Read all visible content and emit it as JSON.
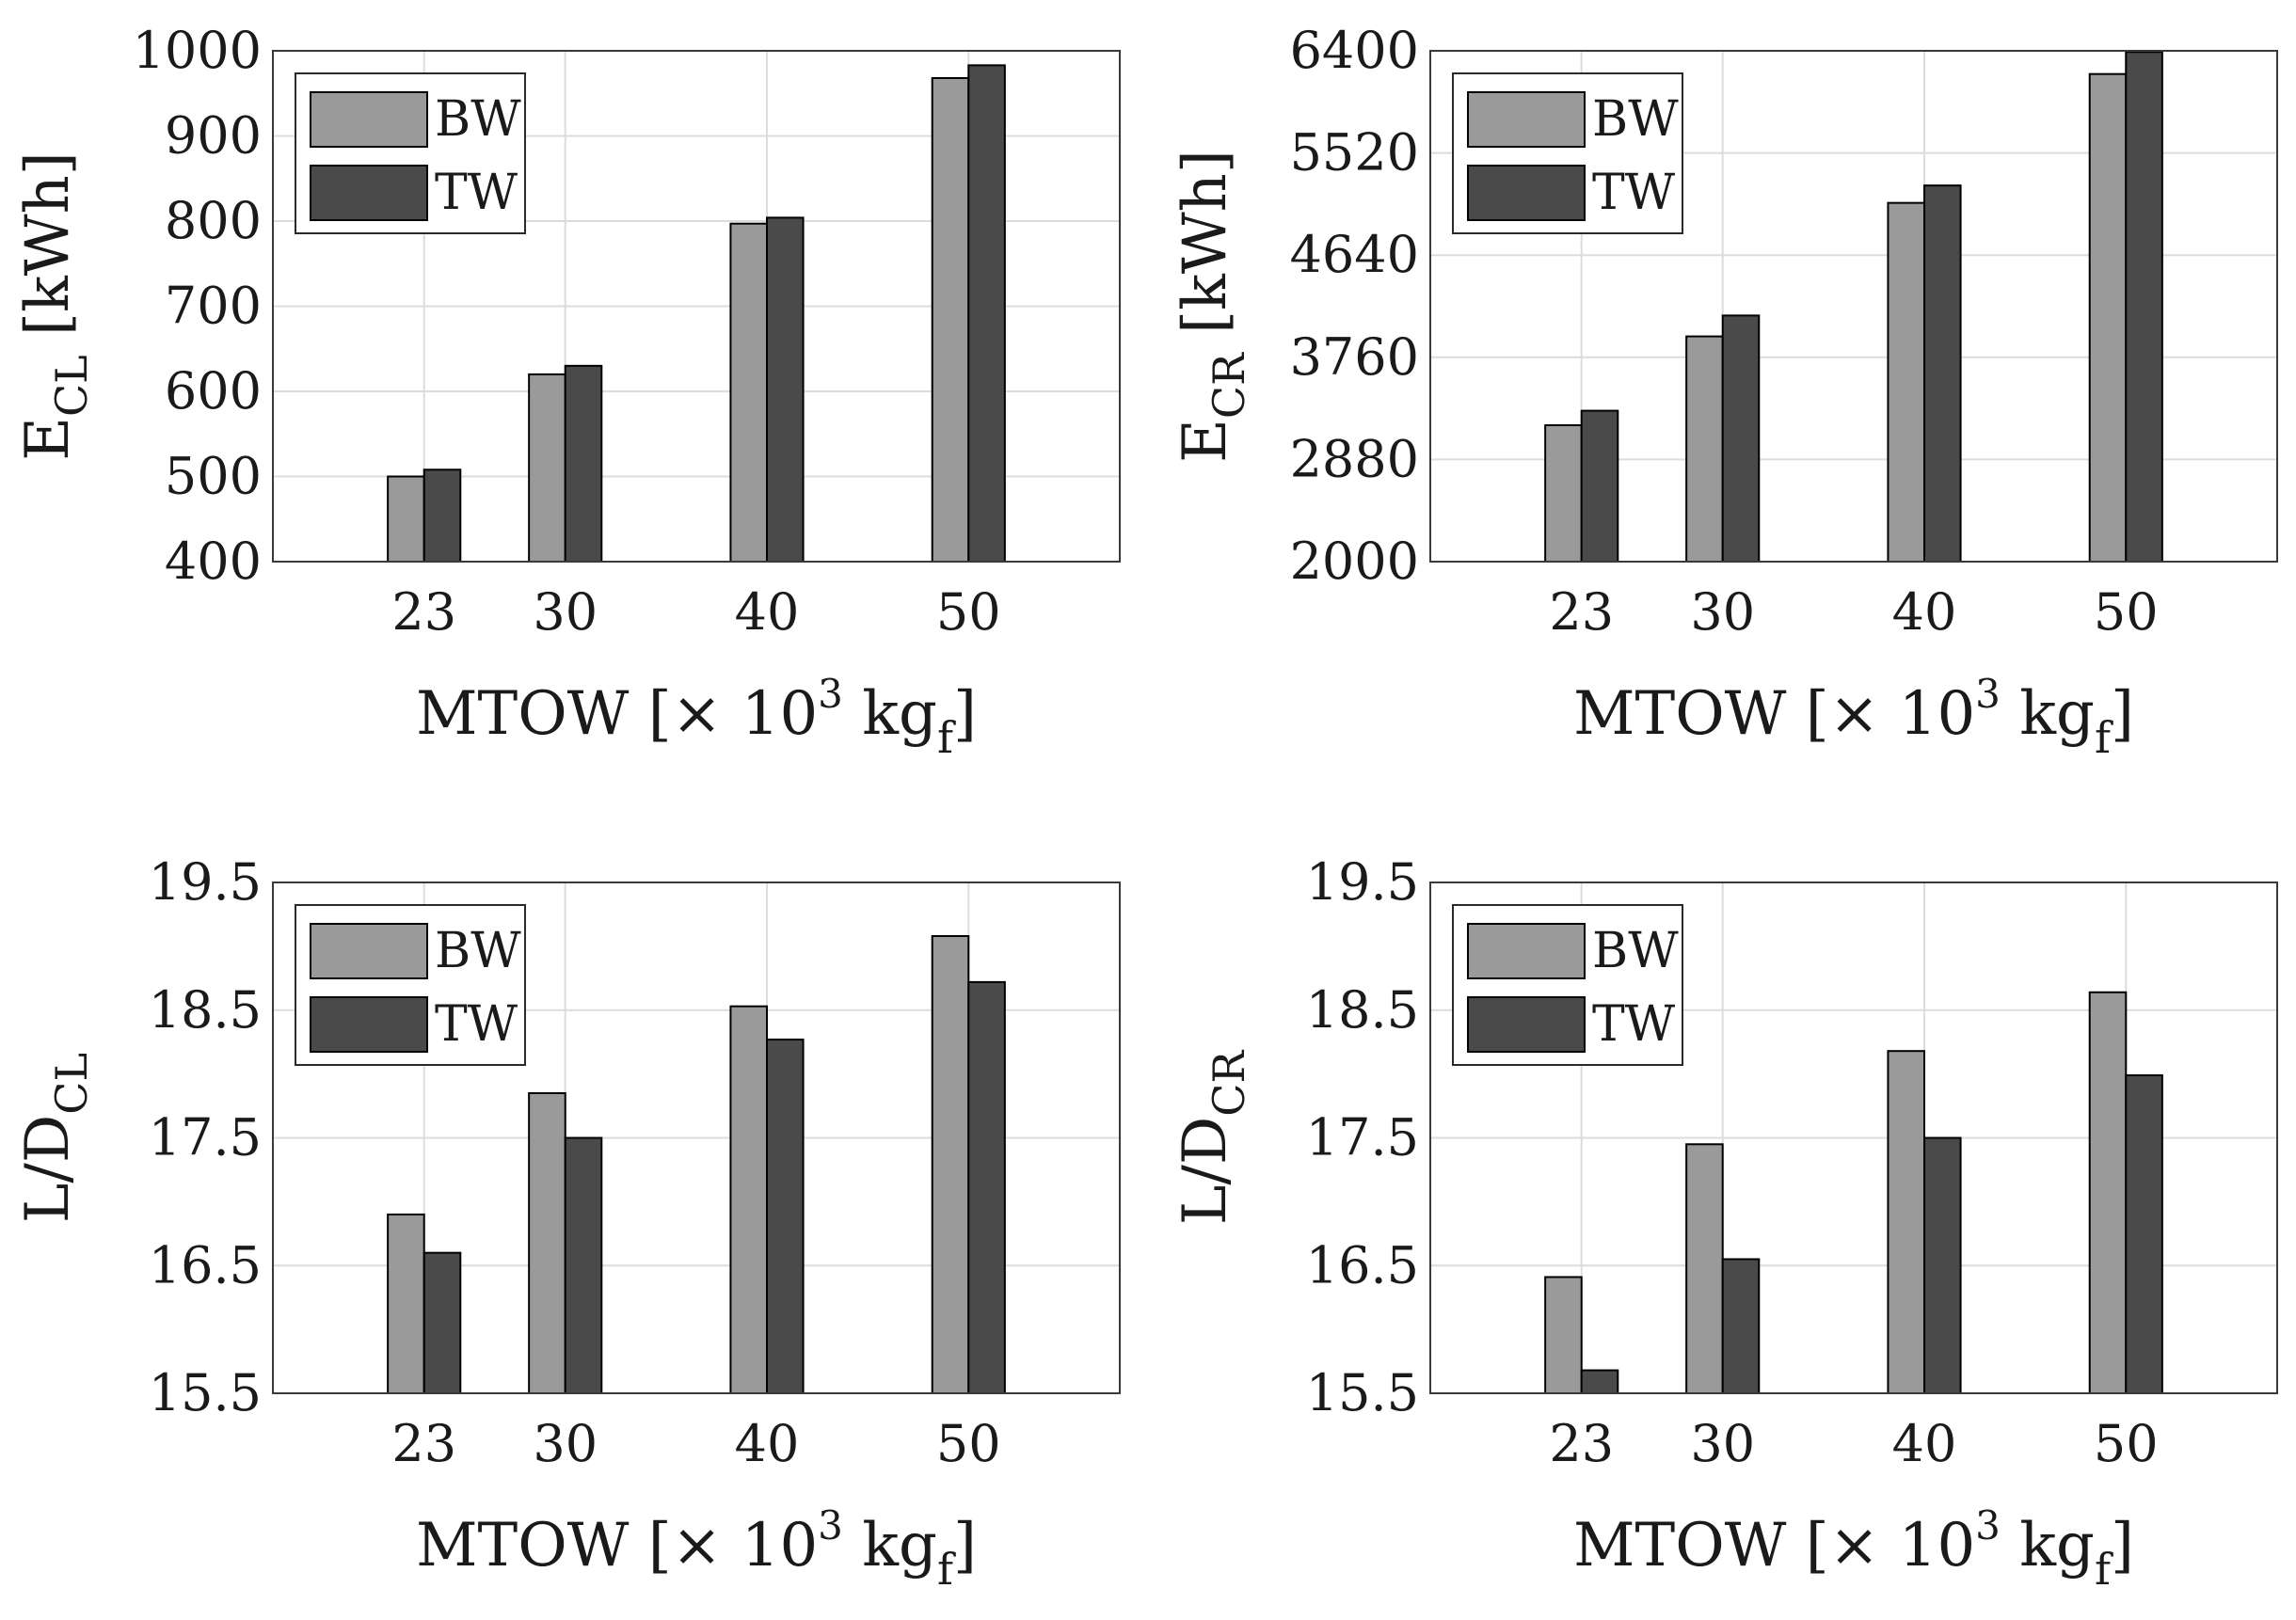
{
  "chart_data": [
    {
      "type": "bar",
      "panel": "top-left",
      "categories": [
        "23",
        "30",
        "40",
        "50"
      ],
      "x": [
        23,
        30,
        40,
        50
      ],
      "xlim": [
        15.5,
        57.5
      ],
      "ylim": [
        400,
        1000
      ],
      "yticks": [
        400,
        500,
        600,
        700,
        800,
        900,
        1000
      ],
      "series": [
        {
          "name": "BW",
          "color": "#9a9a9a",
          "values": [
            500,
            620,
            797,
            968
          ]
        },
        {
          "name": "TW",
          "color": "#4a4a4a",
          "values": [
            508,
            630,
            804,
            983
          ]
        }
      ],
      "ylabel": {
        "main": "E",
        "sub": "CL",
        "unit": " [kWh]"
      },
      "xlabel": {
        "pre": "MTOW [× 10",
        "sup": "3",
        "mid": " kg",
        "sub": "f",
        "post": "]"
      },
      "legend_position": "top-left"
    },
    {
      "type": "bar",
      "panel": "top-right",
      "categories": [
        "23",
        "30",
        "40",
        "50"
      ],
      "x": [
        23,
        30,
        40,
        50
      ],
      "xlim": [
        15.5,
        57.5
      ],
      "ylim": [
        2000,
        6400
      ],
      "yticks": [
        2000,
        2880,
        3760,
        4640,
        5520,
        6400
      ],
      "series": [
        {
          "name": "BW",
          "color": "#9a9a9a",
          "values": [
            3175,
            3940,
            5090,
            6200
          ]
        },
        {
          "name": "TW",
          "color": "#4a4a4a",
          "values": [
            3300,
            4120,
            5240,
            6390
          ]
        }
      ],
      "ylabel": {
        "main": "E",
        "sub": "CR",
        "unit": " [kWh]"
      },
      "xlabel": {
        "pre": "MTOW [× 10",
        "sup": "3",
        "mid": " kg",
        "sub": "f",
        "post": "]"
      },
      "legend_position": "top-left"
    },
    {
      "type": "bar",
      "panel": "bottom-left",
      "categories": [
        "23",
        "30",
        "40",
        "50"
      ],
      "x": [
        23,
        30,
        40,
        50
      ],
      "xlim": [
        15.5,
        57.5
      ],
      "ylim": [
        15.5,
        19.5
      ],
      "yticks": [
        15.5,
        16.5,
        17.5,
        18.5,
        19.5
      ],
      "series": [
        {
          "name": "BW",
          "color": "#9a9a9a",
          "values": [
            16.9,
            17.85,
            18.53,
            19.08
          ]
        },
        {
          "name": "TW",
          "color": "#4a4a4a",
          "values": [
            16.6,
            17.5,
            18.27,
            18.72
          ]
        }
      ],
      "ylabel": {
        "main": "L/D",
        "sub": "CL",
        "unit": ""
      },
      "xlabel": {
        "pre": "MTOW [× 10",
        "sup": "3",
        "mid": " kg",
        "sub": "f",
        "post": "]"
      },
      "legend_position": "top-left"
    },
    {
      "type": "bar",
      "panel": "bottom-right",
      "categories": [
        "23",
        "30",
        "40",
        "50"
      ],
      "x": [
        23,
        30,
        40,
        50
      ],
      "xlim": [
        15.5,
        57.5
      ],
      "ylim": [
        15.5,
        19.5
      ],
      "yticks": [
        15.5,
        16.5,
        17.5,
        18.5,
        19.5
      ],
      "series": [
        {
          "name": "BW",
          "color": "#9a9a9a",
          "values": [
            16.41,
            17.45,
            18.18,
            18.64
          ]
        },
        {
          "name": "TW",
          "color": "#4a4a4a",
          "values": [
            15.68,
            16.55,
            17.5,
            17.99
          ]
        }
      ],
      "ylabel": {
        "main": "L/D",
        "sub": "CR",
        "unit": ""
      },
      "xlabel": {
        "pre": "MTOW [× 10",
        "sup": "3",
        "mid": " kg",
        "sub": "f",
        "post": "]"
      },
      "legend_position": "top-left"
    }
  ]
}
